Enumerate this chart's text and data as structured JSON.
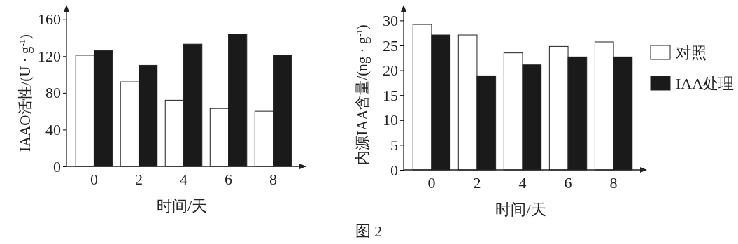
{
  "chart_data": [
    {
      "type": "bar",
      "xlabel": "时间/天",
      "ylabel": "IAAO活性/(U · g$^{-1}$)",
      "categories": [
        "0",
        "2",
        "4",
        "6",
        "8"
      ],
      "series": [
        {
          "color": "#ffffff",
          "values": [
            121,
            92,
            72,
            63,
            60
          ]
        },
        {
          "color": "#1a1a1a",
          "values": [
            126,
            110,
            133,
            144,
            121
          ]
        }
      ],
      "ylim": [
        0,
        175
      ],
      "yticks": [
        0,
        40,
        80,
        120,
        160
      ],
      "legend": false,
      "annotations": [
        "图 2"
      ]
    },
    {
      "type": "bar",
      "xlabel": "时间/天",
      "ylabel": "内源IAA含量/(ng · g$^{-1}$)",
      "categories": [
        "0",
        "2",
        "4",
        "6",
        "8"
      ],
      "series": [
        {
          "name": "对照",
          "color": "#ffffff",
          "values": [
            29.2,
            27.1,
            23.5,
            24.8,
            25.7
          ]
        },
        {
          "name": "IAA处理",
          "color": "#1a1a1a",
          "values": [
            27.1,
            18.9,
            21.1,
            22.7,
            22.7
          ]
        }
      ],
      "ylim": [
        0,
        33
      ],
      "yticks": [
        0,
        5,
        10,
        15,
        20,
        25,
        30
      ],
      "legend": "right"
    }
  ]
}
